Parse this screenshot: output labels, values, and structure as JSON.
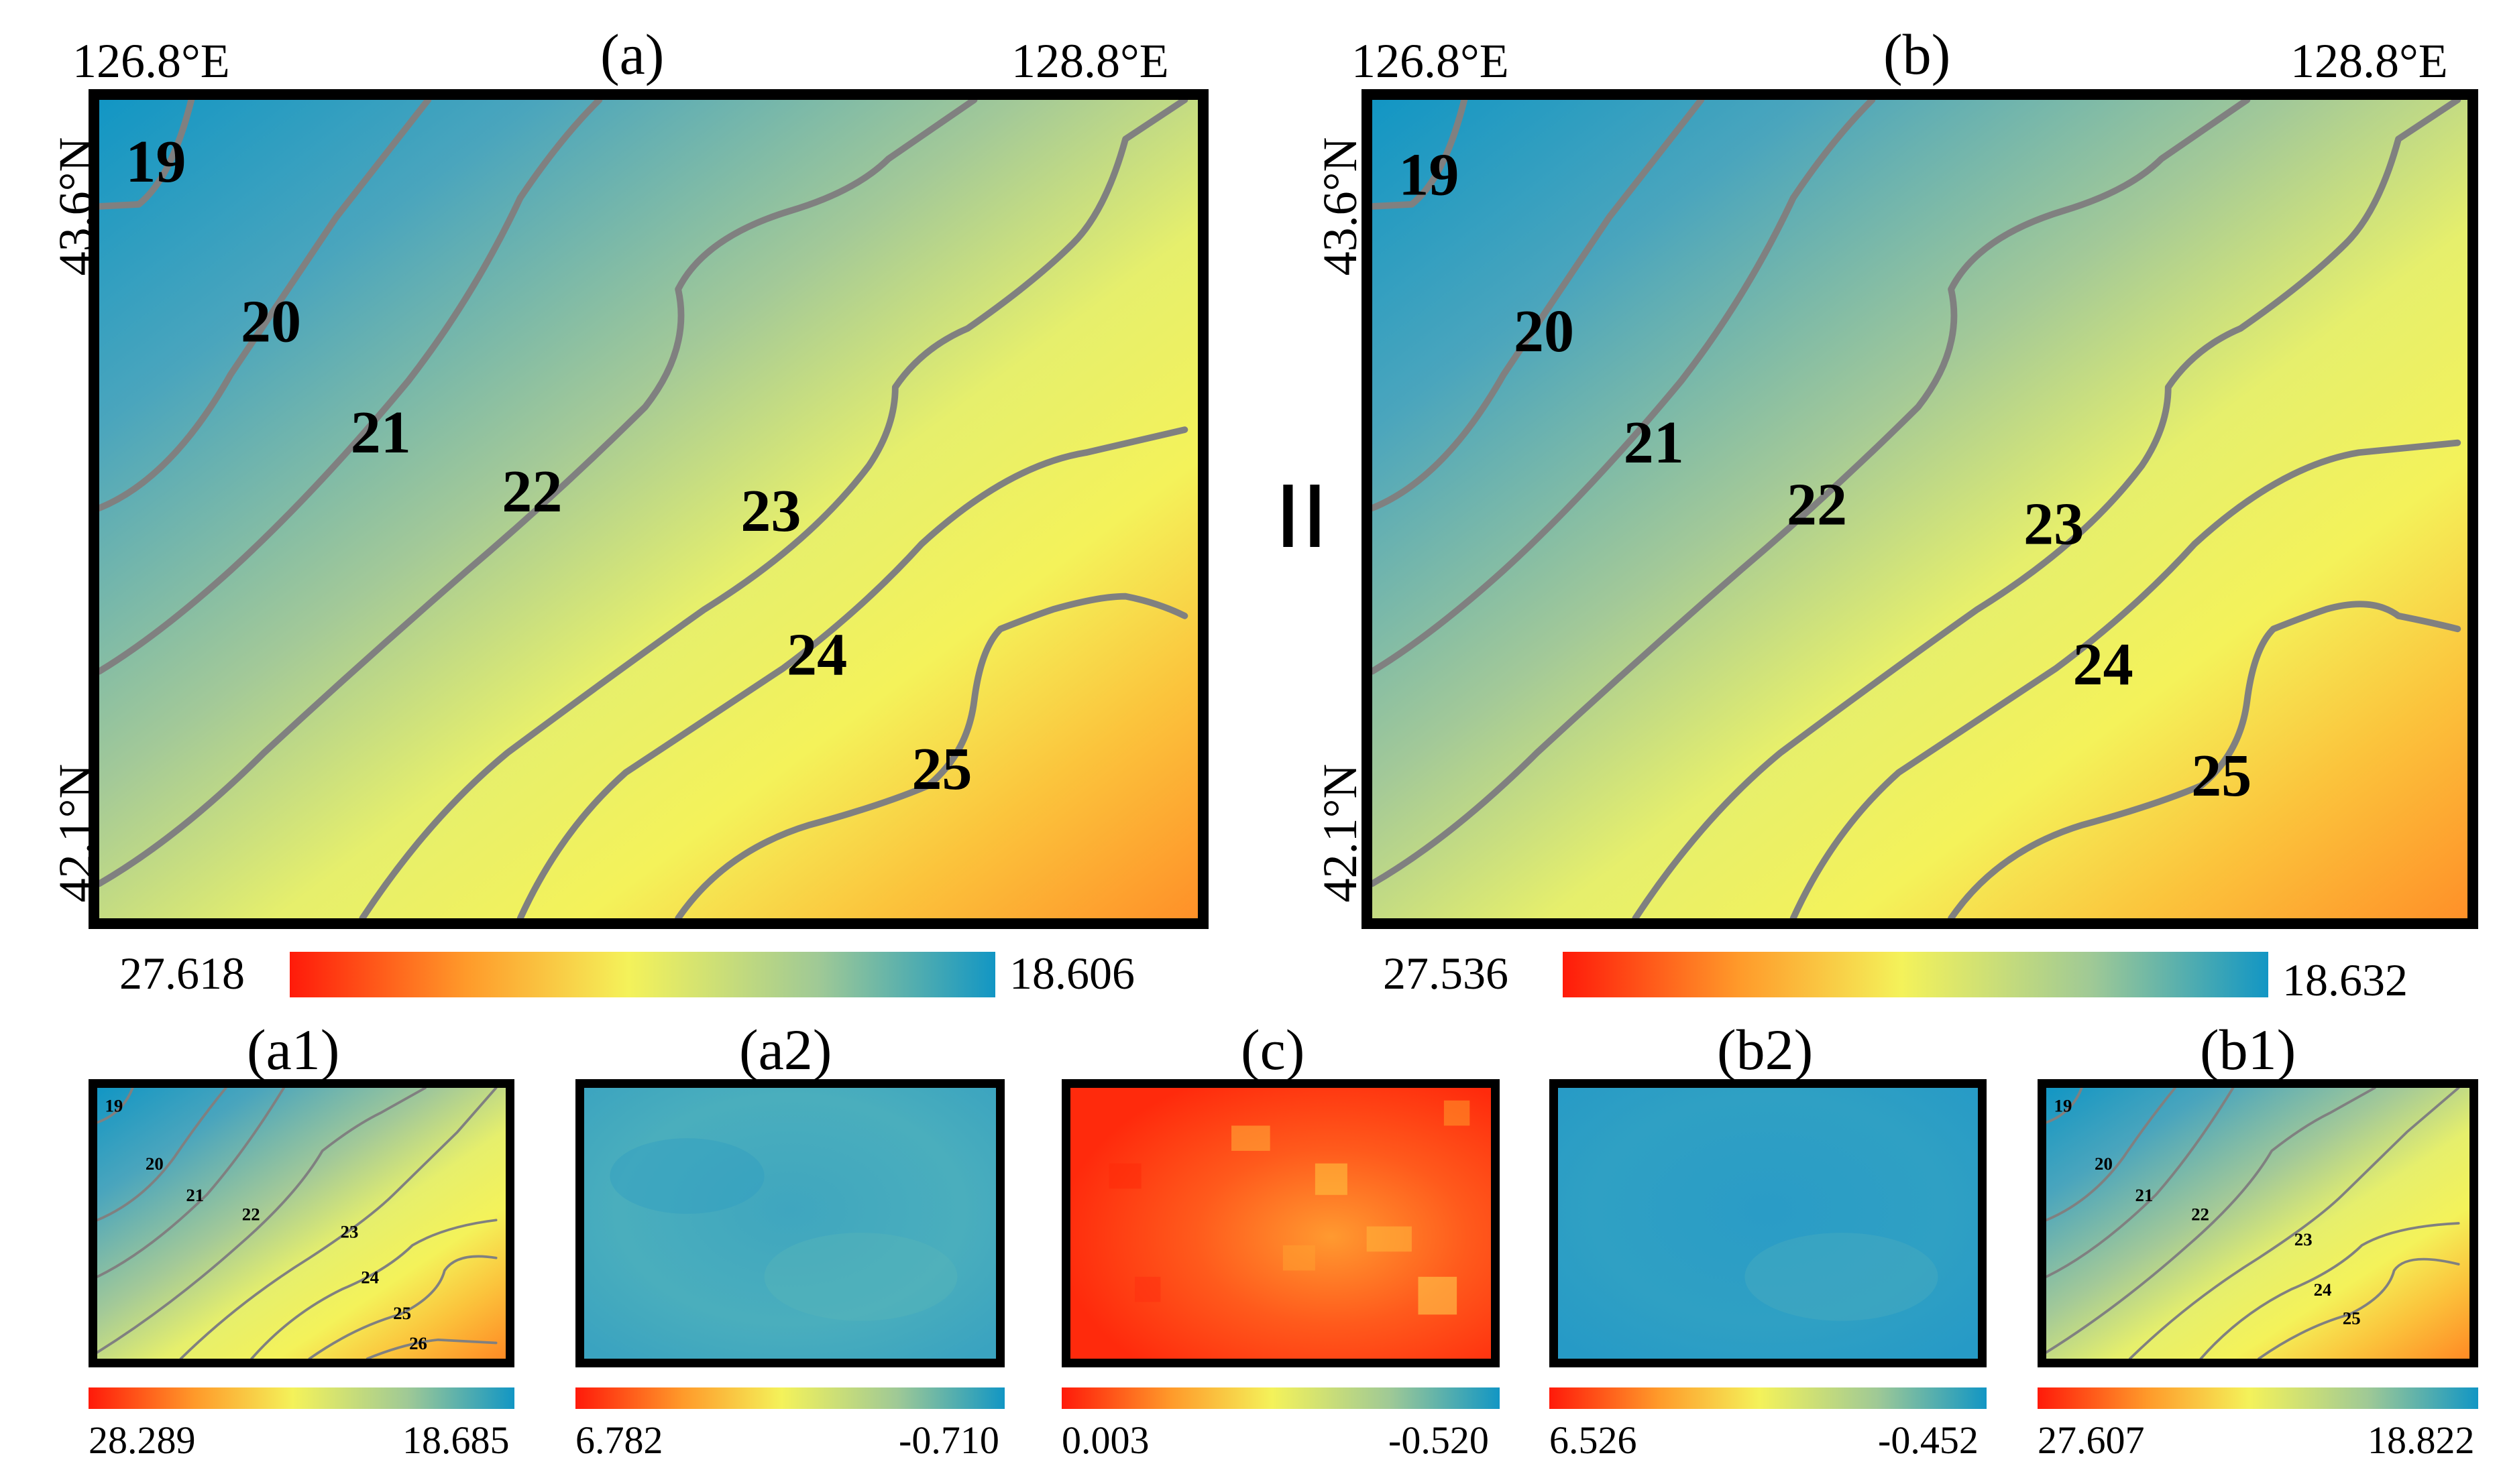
{
  "panels": {
    "a": {
      "title": "(a)",
      "lon_left": "126.8°E",
      "lon_right": "128.8°E",
      "lat_top": "43.6°N",
      "lat_bottom": "42.1°N",
      "contour_labels": [
        "19",
        "20",
        "21",
        "22",
        "23",
        "24",
        "25"
      ],
      "colorbar_min": "27.618",
      "colorbar_max": "18.606"
    },
    "b": {
      "title": "(b)",
      "lon_left": "126.8°E",
      "lon_right": "128.8°E",
      "lat_top": "43.6°N",
      "lat_bottom": "42.1°N",
      "contour_labels": [
        "19",
        "20",
        "21",
        "22",
        "23",
        "24",
        "25"
      ],
      "colorbar_min": "27.536",
      "colorbar_max": "18.632"
    },
    "equal_sign": "=",
    "small": {
      "a1": {
        "title": "(a1)",
        "contour_labels": [
          "19",
          "20",
          "21",
          "22",
          "23",
          "24",
          "25",
          "26"
        ],
        "colorbar_min": "28.289",
        "colorbar_max": "18.685"
      },
      "a2": {
        "title": "(a2)",
        "colorbar_min": "6.782",
        "colorbar_max": "-0.710"
      },
      "c": {
        "title": "(c)",
        "colorbar_min": "0.003",
        "colorbar_max": "-0.520"
      },
      "b2": {
        "title": "(b2)",
        "colorbar_min": "6.526",
        "colorbar_max": "-0.452"
      },
      "b1": {
        "title": "(b1)",
        "contour_labels": [
          "19",
          "20",
          "21",
          "22",
          "23",
          "24",
          "25"
        ],
        "colorbar_min": "27.607",
        "colorbar_max": "18.822"
      }
    }
  },
  "colors": {
    "red": "#ff1a0a",
    "orange": "#ff9a2a",
    "yellow": "#f4f25a",
    "green": "#9fc996",
    "blue": "#1296c4",
    "contour": "#808080"
  }
}
